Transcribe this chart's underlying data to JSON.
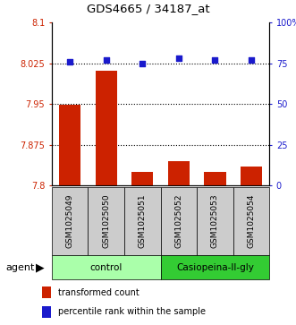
{
  "title": "GDS4665 / 34187_at",
  "samples": [
    "GSM1025049",
    "GSM1025050",
    "GSM1025051",
    "GSM1025052",
    "GSM1025053",
    "GSM1025054"
  ],
  "bar_values": [
    7.948,
    8.012,
    7.825,
    7.845,
    7.825,
    7.835
  ],
  "percentile_values": [
    76,
    77,
    75,
    78,
    77,
    77
  ],
  "bar_color": "#cc2200",
  "dot_color": "#1a1acc",
  "ylim_left": [
    7.8,
    8.1
  ],
  "ylim_right": [
    0,
    100
  ],
  "yticks_left": [
    7.8,
    7.875,
    7.95,
    8.025,
    8.1
  ],
  "yticks_right": [
    0,
    25,
    50,
    75,
    100
  ],
  "ytick_labels_left": [
    "7.8",
    "7.875",
    "7.95",
    "8.025",
    "8.1"
  ],
  "ytick_labels_right": [
    "0",
    "25",
    "50",
    "75",
    "100%"
  ],
  "gridlines": [
    7.875,
    7.95,
    8.025
  ],
  "groups": [
    {
      "label": "control",
      "indices": [
        0,
        1,
        2
      ],
      "color": "#aaffaa"
    },
    {
      "label": "Casiopeina-II-gly",
      "indices": [
        3,
        4,
        5
      ],
      "color": "#33cc33"
    }
  ],
  "agent_label": "agent",
  "legend_bar_label": "transformed count",
  "legend_dot_label": "percentile rank within the sample",
  "bar_bottom": 7.8,
  "dot_size": 25,
  "bar_color_rgb": "#cc2200",
  "sample_box_color": "#cccccc",
  "sample_box_edge": "#888888"
}
